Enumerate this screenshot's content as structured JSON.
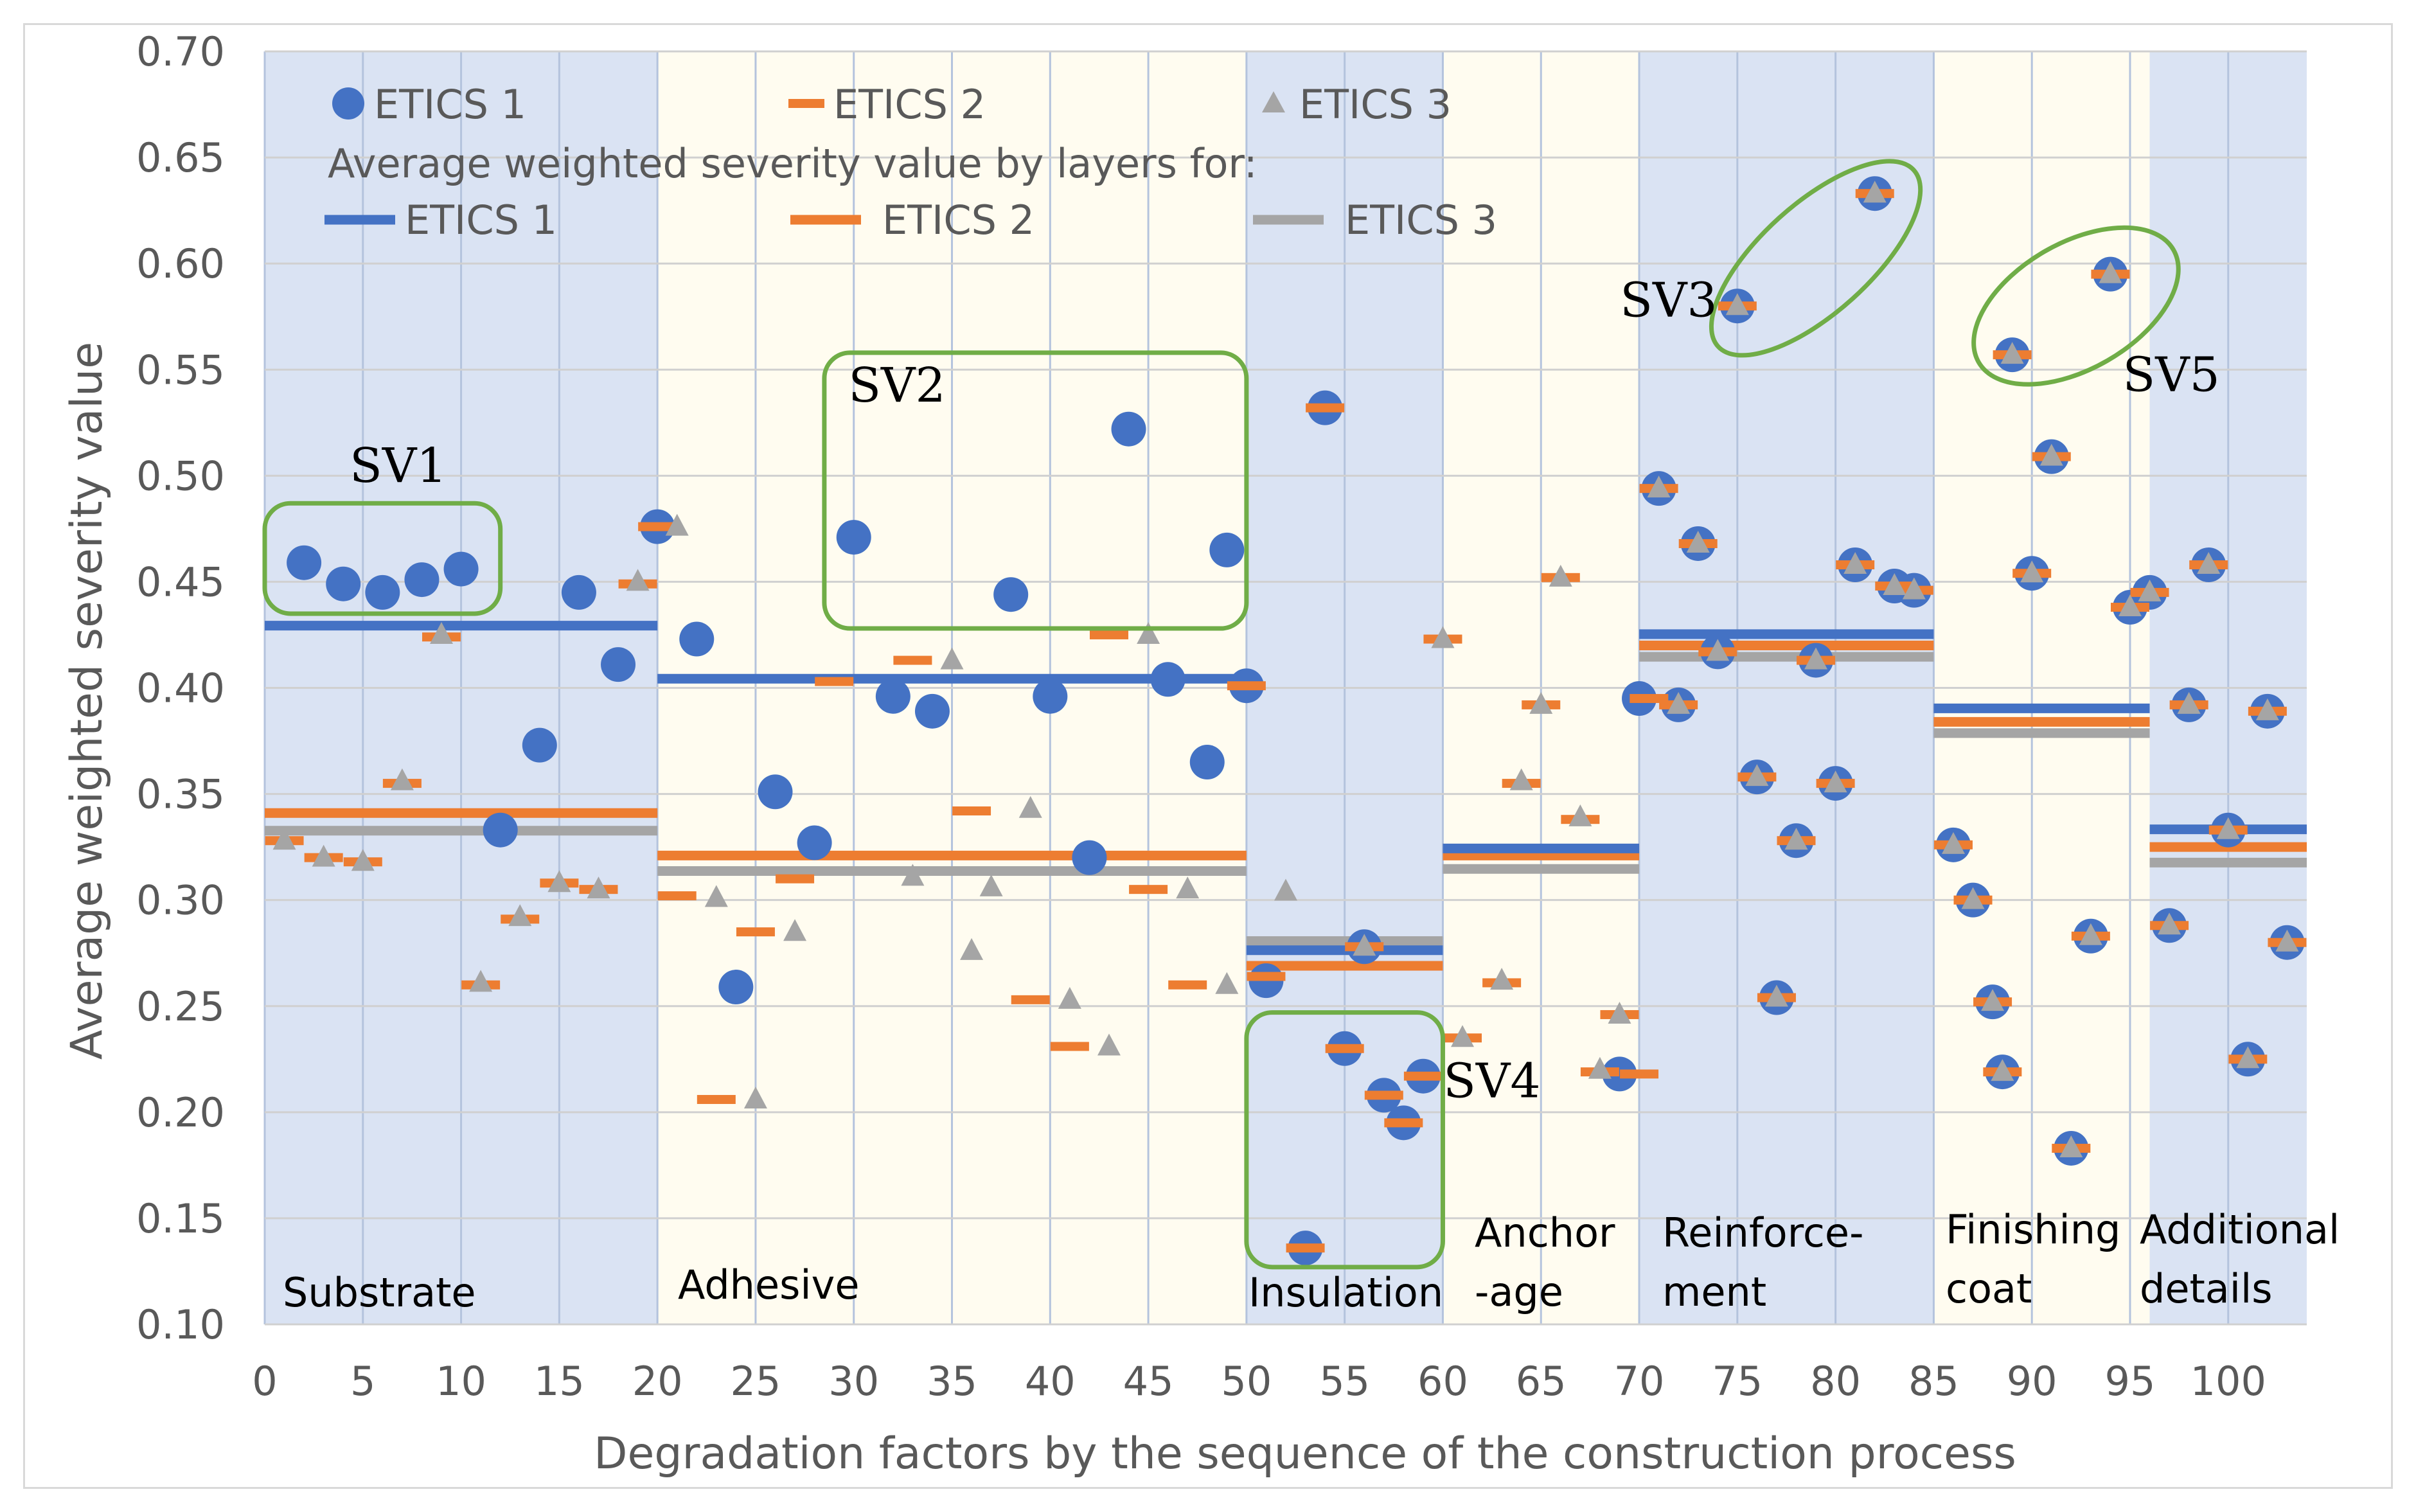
{
  "chart_data": {
    "type": "scatter",
    "title": "",
    "xlabel": "Degradation factors by the sequence of the construction process",
    "ylabel": "Average weighted severity value",
    "xlim": [
      0,
      104
    ],
    "ylim": [
      0.1,
      0.7
    ],
    "xticks": [
      0,
      5,
      10,
      15,
      20,
      25,
      30,
      35,
      40,
      45,
      50,
      55,
      60,
      65,
      70,
      75,
      80,
      85,
      90,
      95,
      100
    ],
    "yticks": [
      0.1,
      0.15,
      0.2,
      0.25,
      0.3,
      0.35,
      0.4,
      0.45,
      0.5,
      0.55,
      0.6,
      0.65,
      0.7
    ],
    "xtick_labels": [
      "0",
      "5",
      "10",
      "15",
      "20",
      "25",
      "30",
      "35",
      "40",
      "45",
      "50",
      "55",
      "60",
      "65",
      "70",
      "75",
      "80",
      "85",
      "90",
      "95",
      "100"
    ],
    "ytick_labels": [
      "0.10",
      "0.15",
      "0.20",
      "0.25",
      "0.30",
      "0.35",
      "0.40",
      "0.45",
      "0.50",
      "0.55",
      "0.60",
      "0.65",
      "0.70"
    ],
    "colors": {
      "etics1": "#4472C4",
      "etics2": "#ED7D31",
      "etics3": "#A5A5A5",
      "blue_band": "#DAE3F3",
      "cream_band": "#FFFCF0",
      "annotation": "#70AD47"
    },
    "legend": {
      "marker_entries": [
        "ETICS 1",
        "ETICS 2",
        "ETICS 3"
      ],
      "subtitle": "Average weighted severity value by layers for:",
      "line_entries": [
        "ETICS 1",
        "ETICS 2",
        "ETICS 3"
      ]
    },
    "layers": [
      {
        "label_lines": [
          "Substrate"
        ],
        "x_range": [
          0,
          20
        ],
        "band": "blue",
        "avg": {
          "etics1": 0.426,
          "etics2": 0.341,
          "etics3": 0.336
        }
      },
      {
        "label_lines": [
          "Adhesive"
        ],
        "x_range": [
          20,
          50
        ],
        "band": "cream",
        "avg": {
          "etics1": 0.401,
          "etics2": 0.321,
          "etics3": 0.317
        }
      },
      {
        "label_lines": [
          "Insulation"
        ],
        "x_range": [
          50,
          60
        ],
        "band": "blue",
        "avg": {
          "etics1": 0.273,
          "etics2": 0.269,
          "etics3": 0.284
        }
      },
      {
        "label_lines": [
          "Anchor",
          "-age"
        ],
        "x_range": [
          60,
          70
        ],
        "band": "cream",
        "avg": {
          "etics1": 0.321,
          "etics2": 0.321,
          "etics3": 0.318
        }
      },
      {
        "label_lines": [
          "Reinforce-",
          "ment"
        ],
        "x_range": [
          70,
          85
        ],
        "band": "blue",
        "avg": {
          "etics1": 0.422,
          "etics2": 0.42,
          "etics3": 0.418
        }
      },
      {
        "label_lines": [
          "Finishing",
          "coat"
        ],
        "x_range": [
          85,
          96
        ],
        "band": "cream",
        "avg": {
          "etics1": 0.387,
          "etics2": 0.384,
          "etics3": 0.382
        }
      },
      {
        "label_lines": [
          "Additional",
          "details"
        ],
        "x_range": [
          96,
          104
        ],
        "band": "blue",
        "avg": {
          "etics1": 0.33,
          "etics2": 0.325,
          "etics3": 0.321
        }
      }
    ],
    "series": [
      {
        "name": "ETICS 1",
        "marker": "circle",
        "points": [
          [
            2,
            0.459
          ],
          [
            4,
            0.449
          ],
          [
            6,
            0.445
          ],
          [
            8,
            0.451
          ],
          [
            10,
            0.456
          ],
          [
            12,
            0.333
          ],
          [
            14,
            0.373
          ],
          [
            16,
            0.445
          ],
          [
            18,
            0.411
          ],
          [
            20,
            0.476
          ],
          [
            22,
            0.423
          ],
          [
            24,
            0.259
          ],
          [
            26,
            0.351
          ],
          [
            28,
            0.327
          ],
          [
            30,
            0.471
          ],
          [
            32,
            0.396
          ],
          [
            34,
            0.389
          ],
          [
            38,
            0.444
          ],
          [
            40,
            0.396
          ],
          [
            42,
            0.32
          ],
          [
            44,
            0.522
          ],
          [
            46,
            0.404
          ],
          [
            48,
            0.365
          ],
          [
            49,
            0.465
          ],
          [
            50,
            0.401
          ],
          [
            51,
            0.262
          ],
          [
            53,
            0.136
          ],
          [
            54,
            0.532
          ],
          [
            55,
            0.23
          ],
          [
            56,
            0.278
          ],
          [
            57,
            0.208
          ],
          [
            58,
            0.195
          ],
          [
            59,
            0.217
          ],
          [
            69,
            0.218
          ],
          [
            70,
            0.395
          ],
          [
            71,
            0.494
          ],
          [
            72,
            0.392
          ],
          [
            73,
            0.468
          ],
          [
            74,
            0.417
          ],
          [
            75,
            0.58
          ],
          [
            76,
            0.358
          ],
          [
            77,
            0.254
          ],
          [
            78,
            0.328
          ],
          [
            79,
            0.413
          ],
          [
            80,
            0.355
          ],
          [
            81,
            0.458
          ],
          [
            82,
            0.633
          ],
          [
            83,
            0.448
          ],
          [
            84,
            0.446
          ],
          [
            86,
            0.326
          ],
          [
            87,
            0.3
          ],
          [
            88,
            0.252
          ],
          [
            88.5,
            0.219
          ],
          [
            89,
            0.557
          ],
          [
            90,
            0.454
          ],
          [
            91,
            0.509
          ],
          [
            92,
            0.183
          ],
          [
            93,
            0.283
          ],
          [
            94,
            0.595
          ],
          [
            95,
            0.438
          ],
          [
            96,
            0.445
          ],
          [
            97,
            0.288
          ],
          [
            98,
            0.392
          ],
          [
            99,
            0.458
          ],
          [
            100,
            0.333
          ],
          [
            101,
            0.225
          ],
          [
            102,
            0.389
          ],
          [
            103,
            0.28
          ]
        ]
      },
      {
        "name": "ETICS 2",
        "marker": "dash",
        "points": [
          [
            1,
            0.328
          ],
          [
            3,
            0.32
          ],
          [
            5,
            0.318
          ],
          [
            7,
            0.355
          ],
          [
            9,
            0.424
          ],
          [
            11,
            0.26
          ],
          [
            13,
            0.291
          ],
          [
            15,
            0.308
          ],
          [
            17,
            0.305
          ],
          [
            19,
            0.449
          ],
          [
            20,
            0.476
          ],
          [
            21,
            0.302
          ],
          [
            23,
            0.206
          ],
          [
            25,
            0.285
          ],
          [
            27,
            0.31
          ],
          [
            29,
            0.403
          ],
          [
            33,
            0.413
          ],
          [
            36,
            0.342
          ],
          [
            39,
            0.253
          ],
          [
            41,
            0.231
          ],
          [
            43,
            0.425
          ],
          [
            45,
            0.305
          ],
          [
            47,
            0.26
          ],
          [
            50,
            0.401
          ],
          [
            51,
            0.264
          ],
          [
            53,
            0.136
          ],
          [
            54,
            0.532
          ],
          [
            55,
            0.23
          ],
          [
            56,
            0.278
          ],
          [
            57,
            0.208
          ],
          [
            58,
            0.195
          ],
          [
            59,
            0.217
          ],
          [
            60,
            0.423
          ],
          [
            61,
            0.235
          ],
          [
            63,
            0.261
          ],
          [
            64,
            0.355
          ],
          [
            65,
            0.392
          ],
          [
            66,
            0.452
          ],
          [
            67,
            0.338
          ],
          [
            68,
            0.219
          ],
          [
            69,
            0.246
          ],
          [
            70,
            0.218
          ],
          [
            70.5,
            0.395
          ],
          [
            71,
            0.494
          ],
          [
            72,
            0.392
          ],
          [
            73,
            0.468
          ],
          [
            74,
            0.417
          ],
          [
            75,
            0.58
          ],
          [
            76,
            0.358
          ],
          [
            77,
            0.254
          ],
          [
            78,
            0.328
          ],
          [
            79,
            0.413
          ],
          [
            80,
            0.355
          ],
          [
            81,
            0.458
          ],
          [
            82,
            0.633
          ],
          [
            83,
            0.448
          ],
          [
            84,
            0.446
          ],
          [
            86,
            0.326
          ],
          [
            87,
            0.3
          ],
          [
            88,
            0.252
          ],
          [
            88.5,
            0.219
          ],
          [
            89,
            0.557
          ],
          [
            90,
            0.454
          ],
          [
            91,
            0.509
          ],
          [
            92,
            0.183
          ],
          [
            93,
            0.283
          ],
          [
            94,
            0.595
          ],
          [
            95,
            0.438
          ],
          [
            96,
            0.445
          ],
          [
            97,
            0.288
          ],
          [
            98,
            0.392
          ],
          [
            99,
            0.458
          ],
          [
            100,
            0.333
          ],
          [
            101,
            0.225
          ],
          [
            102,
            0.389
          ],
          [
            103,
            0.28
          ]
        ]
      },
      {
        "name": "ETICS 3",
        "marker": "triangle",
        "points": [
          [
            1,
            0.328
          ],
          [
            3,
            0.32
          ],
          [
            5,
            0.318
          ],
          [
            7,
            0.356
          ],
          [
            9,
            0.425
          ],
          [
            11,
            0.261
          ],
          [
            13,
            0.292
          ],
          [
            15,
            0.308
          ],
          [
            17,
            0.305
          ],
          [
            19,
            0.45
          ],
          [
            21,
            0.476
          ],
          [
            23,
            0.301
          ],
          [
            25,
            0.206
          ],
          [
            27,
            0.285
          ],
          [
            33,
            0.311
          ],
          [
            35,
            0.413
          ],
          [
            36,
            0.276
          ],
          [
            37,
            0.306
          ],
          [
            39,
            0.343
          ],
          [
            41,
            0.253
          ],
          [
            43,
            0.231
          ],
          [
            45,
            0.425
          ],
          [
            47,
            0.305
          ],
          [
            49,
            0.26
          ],
          [
            52,
            0.304
          ],
          [
            56,
            0.278
          ],
          [
            60,
            0.423
          ],
          [
            61,
            0.235
          ],
          [
            63,
            0.262
          ],
          [
            64,
            0.356
          ],
          [
            65,
            0.392
          ],
          [
            66,
            0.452
          ],
          [
            67,
            0.339
          ],
          [
            68,
            0.22
          ],
          [
            69,
            0.246
          ],
          [
            71,
            0.494
          ],
          [
            72,
            0.392
          ],
          [
            73,
            0.468
          ],
          [
            74,
            0.417
          ],
          [
            75,
            0.58
          ],
          [
            76,
            0.358
          ],
          [
            77,
            0.254
          ],
          [
            78,
            0.328
          ],
          [
            79,
            0.413
          ],
          [
            80,
            0.355
          ],
          [
            81,
            0.458
          ],
          [
            82,
            0.633
          ],
          [
            83,
            0.448
          ],
          [
            84,
            0.446
          ],
          [
            86,
            0.326
          ],
          [
            87,
            0.3
          ],
          [
            88,
            0.252
          ],
          [
            88.5,
            0.219
          ],
          [
            89,
            0.557
          ],
          [
            90,
            0.454
          ],
          [
            91,
            0.509
          ],
          [
            92,
            0.183
          ],
          [
            93,
            0.283
          ],
          [
            94,
            0.595
          ],
          [
            95,
            0.438
          ],
          [
            96,
            0.445
          ],
          [
            97,
            0.288
          ],
          [
            98,
            0.392
          ],
          [
            99,
            0.458
          ],
          [
            100,
            0.333
          ],
          [
            101,
            0.225
          ],
          [
            102,
            0.389
          ],
          [
            103,
            0.28
          ]
        ]
      }
    ],
    "annotations": [
      {
        "label": "SV1",
        "shape": "rounded-rect",
        "x_range": [
          0,
          12
        ],
        "y_range": [
          0.435,
          0.487
        ]
      },
      {
        "label": "SV2",
        "shape": "rounded-rect",
        "x_range": [
          28.5,
          50
        ],
        "y_range": [
          0.428,
          0.558
        ]
      },
      {
        "label": "SV3",
        "shape": "ellipse",
        "around_x": [
          74,
          84
        ],
        "around_y": [
          0.55,
          0.655
        ]
      },
      {
        "label": "SV4",
        "shape": "rounded-rect",
        "x_range": [
          50,
          60
        ],
        "y_range": [
          0.127,
          0.247
        ]
      },
      {
        "label": "SV5",
        "shape": "ellipse",
        "around_x": [
          87.5,
          97
        ],
        "around_y": [
          0.54,
          0.62
        ]
      }
    ]
  }
}
